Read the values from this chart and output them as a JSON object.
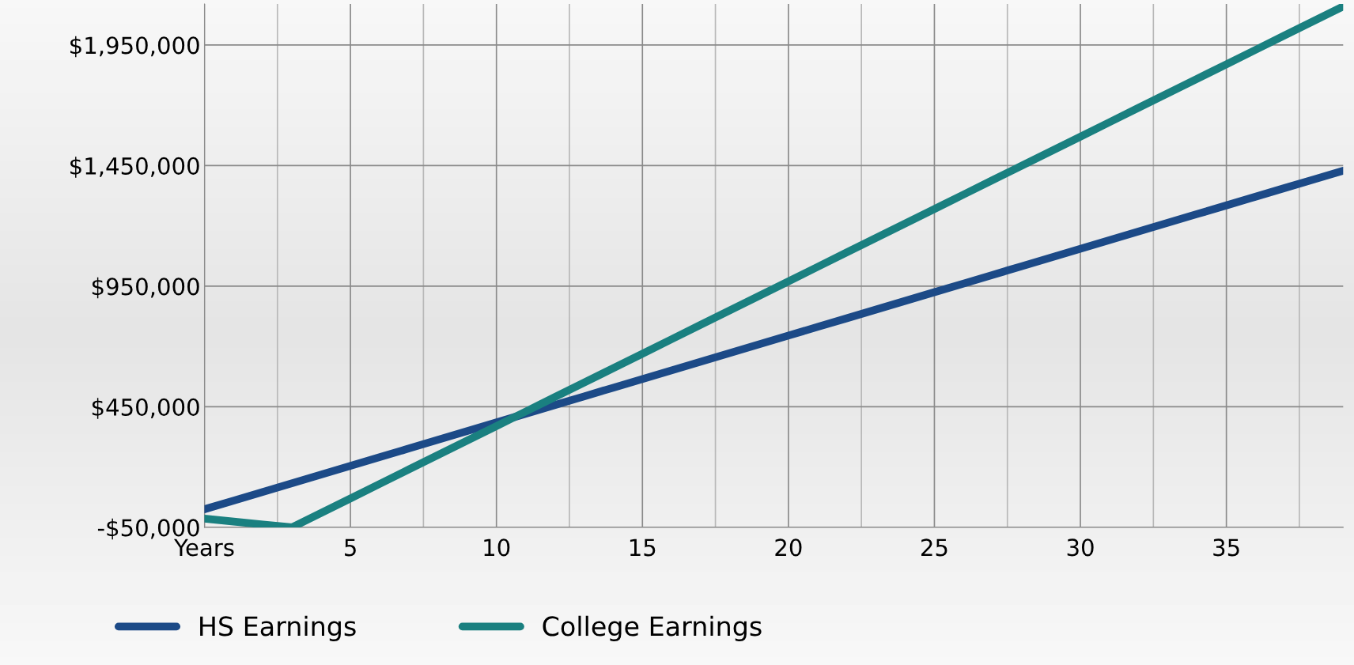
{
  "chart_data": {
    "type": "line",
    "categories": [
      "Years",
      null,
      null,
      null,
      null,
      "5",
      null,
      null,
      null,
      null,
      "10",
      null,
      null,
      null,
      null,
      "15",
      null,
      null,
      null,
      null,
      "20",
      null,
      null,
      null,
      null,
      "25",
      null,
      null,
      null,
      null,
      "30",
      null,
      null,
      null,
      null,
      "35",
      null,
      null,
      null,
      null
    ],
    "series": [
      {
        "name": "HS Earnings",
        "color": "#1c4a87",
        "values": [
          25000,
          61000,
          97000,
          133000,
          169000,
          205000,
          241000,
          277000,
          313000,
          349000,
          385000,
          421000,
          457000,
          493000,
          529000,
          565000,
          601000,
          637000,
          673000,
          709000,
          745000,
          781000,
          817000,
          853000,
          889000,
          925000,
          961000,
          997000,
          1033000,
          1069000,
          1105000,
          1141000,
          1177000,
          1213000,
          1249000,
          1285000,
          1321000,
          1357000,
          1393000,
          1429000
        ]
      },
      {
        "name": "College Earnings",
        "color": "#1a8080",
        "values": [
          -14000,
          -26000,
          -38000,
          -50000,
          10000,
          70000,
          130000,
          190000,
          250000,
          310000,
          370000,
          430000,
          490000,
          550000,
          610000,
          670000,
          730000,
          790000,
          850000,
          910000,
          970000,
          1030000,
          1090000,
          1150000,
          1210000,
          1270000,
          1330000,
          1390000,
          1450000,
          1510000,
          1570000,
          1630000,
          1690000,
          1750000,
          1810000,
          1870000,
          1930000,
          1990000,
          2050000,
          2110000
        ]
      }
    ],
    "ylim": [
      -50000,
      2120000
    ],
    "yticks": [
      {
        "value": -50000,
        "label": "-$50,000"
      },
      {
        "value": 450000,
        "label": "$450,000"
      },
      {
        "value": 950000,
        "label": "$950,000"
      },
      {
        "value": 1450000,
        "label": "$1,450,000"
      },
      {
        "value": 1950000,
        "label": "$1,950,000"
      }
    ],
    "grid": true,
    "legend": "bottom",
    "marker": "none",
    "line_style": "solid"
  }
}
